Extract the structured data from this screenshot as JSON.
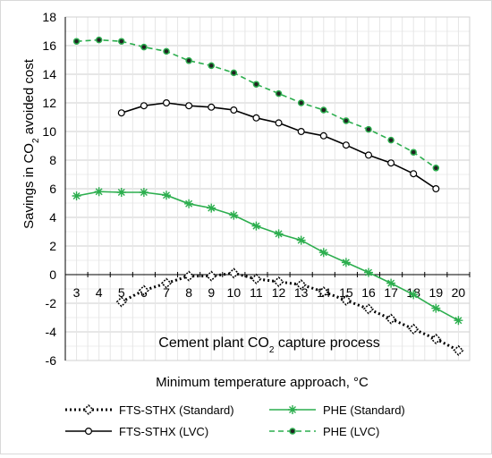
{
  "chart_data": {
    "type": "line",
    "annotation": "Cement plant CO2 capture process",
    "xlabel": "Minimum temperature approach, °C",
    "ylabel": "Savings in CO2 avoided cost",
    "x_ticks": [
      3,
      4,
      5,
      6,
      7,
      8,
      9,
      10,
      11,
      12,
      13,
      14,
      15,
      16,
      17,
      18,
      19,
      20
    ],
    "y_ticks": [
      -6,
      -4,
      -2,
      0,
      2,
      4,
      6,
      8,
      10,
      12,
      14,
      16,
      18
    ],
    "xlim": [
      2.5,
      20.5
    ],
    "ylim": [
      -6,
      18
    ],
    "grid": true,
    "legend_position": "bottom",
    "series": [
      {
        "name": "FTS-STHX (Standard)",
        "color": "#000000",
        "style": "dotted",
        "marker": "open-diamond",
        "x": [
          5,
          6,
          7,
          8,
          9,
          10,
          11,
          12,
          13,
          14,
          15,
          16,
          17,
          18,
          19,
          20
        ],
        "y": [
          -1.9,
          -1.1,
          -0.6,
          -0.1,
          -0.1,
          0.1,
          -0.3,
          -0.5,
          -0.7,
          -1.2,
          -1.8,
          -2.4,
          -3.1,
          -3.8,
          -4.5,
          -5.3
        ]
      },
      {
        "name": "FTS-STHX (LVC)",
        "color": "#000000",
        "style": "solid",
        "marker": "open-circle",
        "x": [
          5,
          6,
          7,
          8,
          9,
          10,
          11,
          12,
          13,
          14,
          15,
          16,
          17,
          18,
          19
        ],
        "y": [
          11.3,
          11.8,
          12.0,
          11.8,
          11.7,
          11.5,
          10.95,
          10.6,
          10.0,
          9.7,
          9.05,
          8.35,
          7.8,
          7.05,
          6.0
        ]
      },
      {
        "name": "PHE (Standard)",
        "color": "#2cae4e",
        "style": "solid",
        "marker": "asterisk",
        "x": [
          3,
          4,
          5,
          6,
          7,
          8,
          9,
          10,
          11,
          12,
          13,
          14,
          15,
          16,
          17,
          18,
          19,
          20
        ],
        "y": [
          5.5,
          5.8,
          5.75,
          5.75,
          5.55,
          4.95,
          4.65,
          4.15,
          3.4,
          2.85,
          2.4,
          1.55,
          0.85,
          0.15,
          -0.6,
          -1.4,
          -2.35,
          -3.2
        ]
      },
      {
        "name": "PHE (LVC)",
        "color": "#2cae4e",
        "style": "dashed",
        "marker": "filled-dot",
        "x": [
          3,
          4,
          5,
          6,
          7,
          8,
          9,
          10,
          11,
          12,
          13,
          14,
          15,
          16,
          17,
          18,
          19
        ],
        "y": [
          16.3,
          16.4,
          16.3,
          15.9,
          15.6,
          14.95,
          14.6,
          14.1,
          13.3,
          12.65,
          12.0,
          11.5,
          10.75,
          10.15,
          9.4,
          8.55,
          7.45
        ]
      }
    ]
  }
}
